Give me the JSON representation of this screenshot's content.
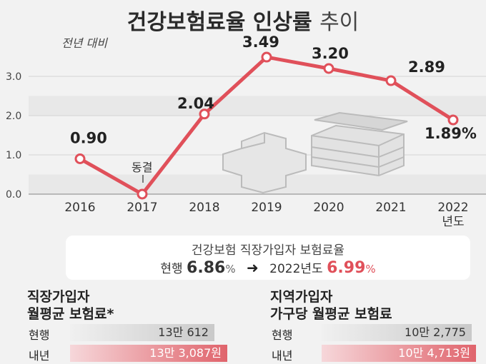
{
  "title_main": "건강보험료율",
  "title_sub": "인상률",
  "title_end": "추이",
  "y_note": "전년 대비",
  "freeze_note": "동결",
  "chart_data": {
    "type": "line",
    "x": [
      "2016",
      "2017",
      "2018",
      "2019",
      "2020",
      "2021",
      "2022"
    ],
    "values": [
      0.9,
      0.0,
      2.04,
      3.49,
      3.2,
      2.89,
      1.89
    ],
    "value_labels": [
      "0.90",
      "",
      "2.04",
      "3.49",
      "3.20",
      "2.89",
      "1.89%"
    ],
    "ylim": [
      0,
      3.5
    ],
    "yticks": [
      "0.0",
      "1.0",
      "2.0",
      "3.0"
    ],
    "x_unit_label": "년도",
    "line_color": "#e0505a"
  },
  "info": {
    "line1": "건강보험 직장가입자 보험료율",
    "current_label": "현행",
    "current_value": "6.86",
    "current_unit": "%",
    "arrow": "➜",
    "next_label": "2022년도",
    "next_value": "6.99",
    "next_unit": "%"
  },
  "left": {
    "title1": "직장가입자",
    "title2": "월평균 보험료*",
    "rows": [
      {
        "label": "현행",
        "value": "13만 612"
      },
      {
        "label": "내년",
        "value": "13만 3,087원"
      }
    ]
  },
  "right": {
    "title1": "지역가입자",
    "title2": "가구당 월평균 보험료",
    "rows": [
      {
        "label": "현행",
        "value": "10만 2,775"
      },
      {
        "label": "내년",
        "value": "10만 4,713원"
      }
    ]
  }
}
